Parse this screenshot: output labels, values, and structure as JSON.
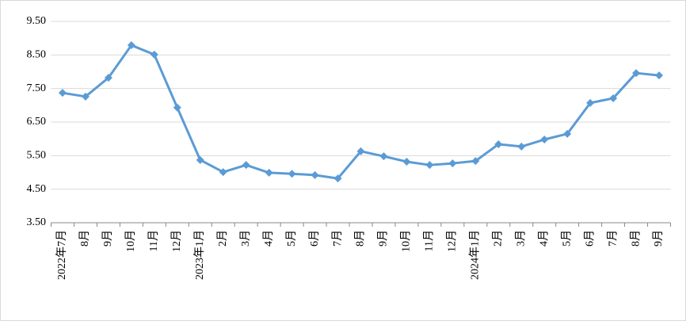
{
  "chart_data": {
    "type": "line",
    "categories": [
      "2022年7月",
      "8月",
      "9月",
      "10月",
      "11月",
      "12月",
      "2023年1月",
      "2月",
      "3月",
      "4月",
      "5月",
      "6月",
      "7月",
      "8月",
      "9月",
      "10月",
      "11月",
      "12月",
      "2024年1月",
      "2月",
      "3月",
      "4月",
      "5月",
      "6月",
      "7月",
      "8月",
      "9月"
    ],
    "series": [
      {
        "color": "#5b9bd5",
        "values": [
          7.37,
          7.26,
          7.82,
          8.79,
          8.51,
          6.93,
          5.37,
          5.01,
          5.22,
          4.99,
          4.96,
          4.92,
          4.82,
          5.63,
          5.48,
          5.32,
          5.22,
          5.27,
          5.34,
          5.84,
          5.77,
          5.98,
          6.15,
          7.07,
          7.21,
          7.96,
          7.89
        ]
      }
    ],
    "ylim": [
      3.5,
      9.5
    ],
    "yticks": [
      {
        "value": 3.5,
        "label": "3.50"
      },
      {
        "value": 4.5,
        "label": "4.50"
      },
      {
        "value": 5.5,
        "label": "5.50"
      },
      {
        "value": 6.5,
        "label": "6.50"
      },
      {
        "value": 7.5,
        "label": "7.50"
      },
      {
        "value": 8.5,
        "label": "8.50"
      },
      {
        "value": 9.5,
        "label": "9.50"
      }
    ],
    "grid": true
  }
}
